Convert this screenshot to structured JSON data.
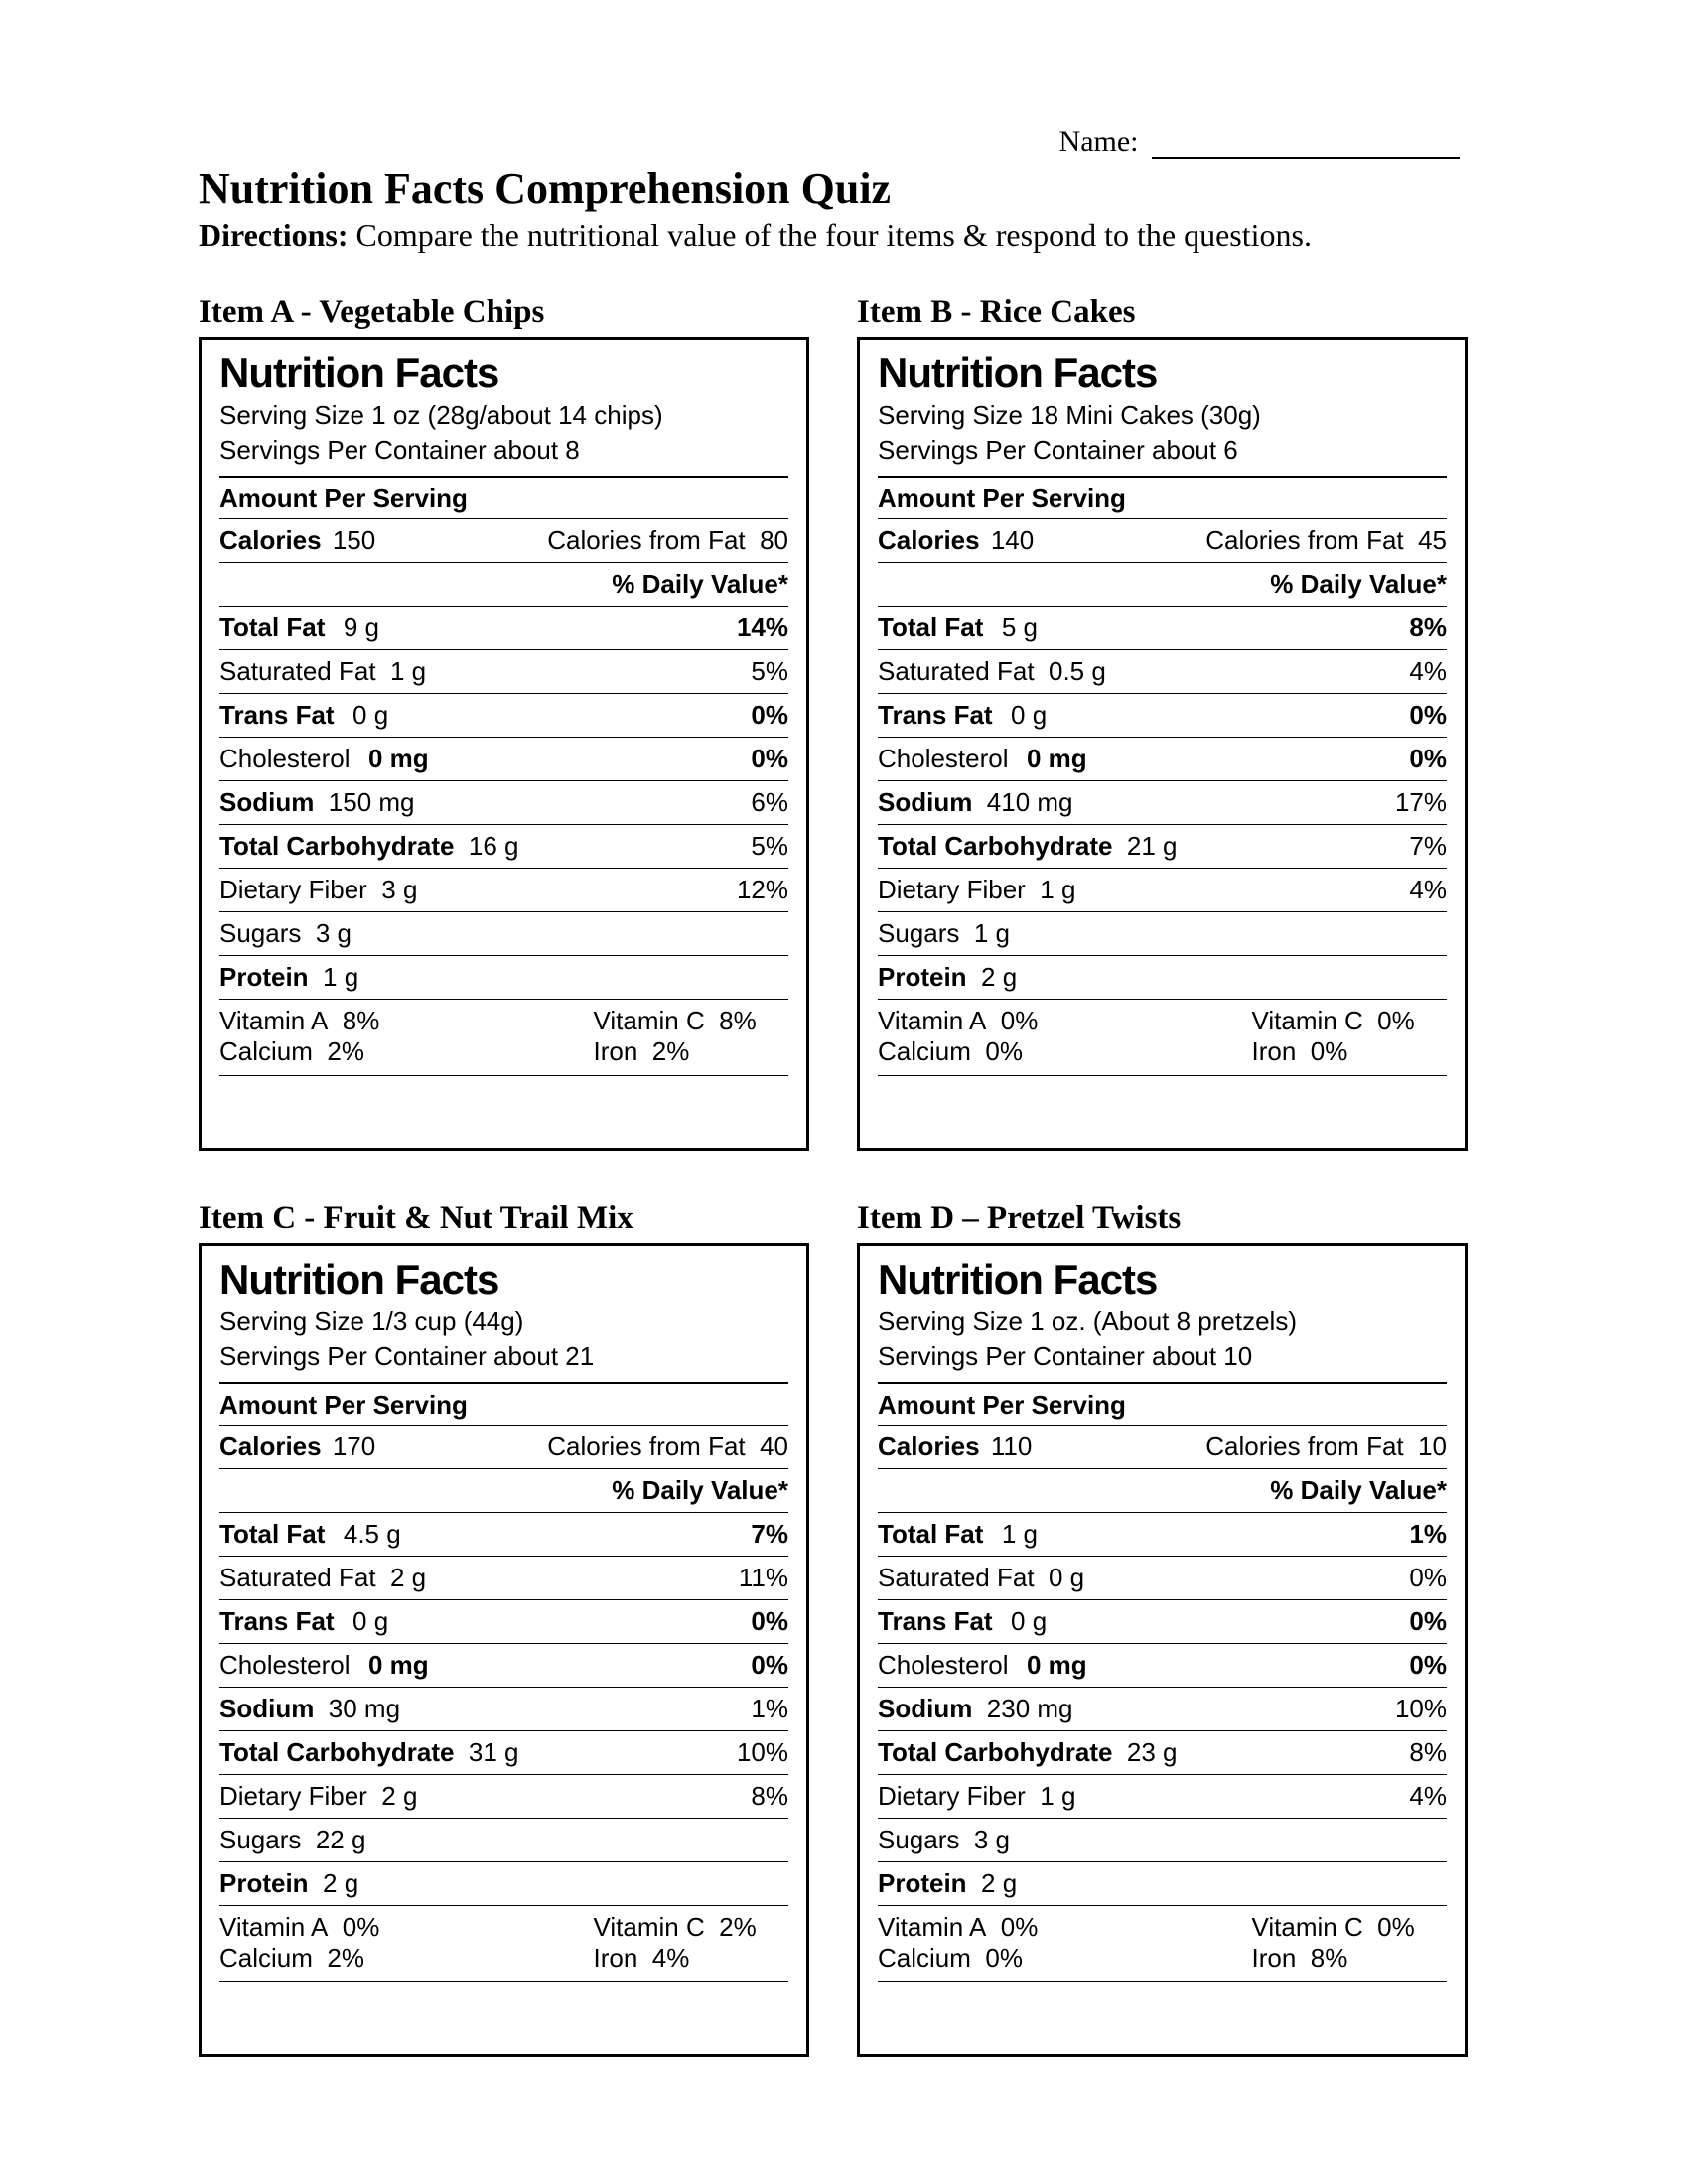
{
  "header": {
    "name_label": "Name:",
    "title": "Nutrition Facts Comprehension Quiz",
    "directions_label": "Directions:",
    "directions_text": "Compare the nutritional value of the four items & respond to the questions."
  },
  "labels": {
    "nf": "Nutrition Facts",
    "serving_size": "Serving Size",
    "servings_per": "Servings Per Container about",
    "aps": "Amount Per Serving",
    "calories": "Calories",
    "cff": "Calories from Fat",
    "dv": "% Daily Value*",
    "total_fat": "Total Fat",
    "sat_fat": "Saturated Fat",
    "trans_fat": "Trans Fat",
    "cholesterol": "Cholesterol",
    "sodium": "Sodium",
    "total_carb": "Total Carbohydrate",
    "fiber": "Dietary Fiber",
    "sugars": "Sugars",
    "protein": "Protein",
    "vit_a": "Vitamin A",
    "vit_c": "Vitamin C",
    "calcium": "Calcium",
    "iron": "Iron"
  },
  "items": [
    {
      "title": "Item A - Vegetable Chips",
      "serving_size": "1 oz (28g/about 14 chips)",
      "servings": "8",
      "calories": "150",
      "calories_fat": "80",
      "total_fat": "9 g",
      "total_fat_dv": "14%",
      "sat_fat": "1 g",
      "sat_fat_dv": "5%",
      "trans_fat": "0 g",
      "trans_fat_dv": "0%",
      "cholesterol": "0 mg",
      "cholesterol_dv": "0%",
      "sodium": "150 mg",
      "sodium_dv": "6%",
      "total_carb": "16 g",
      "total_carb_dv": "5%",
      "fiber": "3 g",
      "fiber_dv": "12%",
      "sugars": "3 g",
      "protein": "1 g",
      "vit_a": "8%",
      "vit_c": "8%",
      "calcium": "2%",
      "iron": "2%"
    },
    {
      "title": "Item B - Rice Cakes",
      "serving_size": "18 Mini Cakes (30g)",
      "servings": "6",
      "calories": "140",
      "calories_fat": "45",
      "total_fat": "5 g",
      "total_fat_dv": "8%",
      "sat_fat": "0.5 g",
      "sat_fat_dv": "4%",
      "trans_fat": "0 g",
      "trans_fat_dv": "0%",
      "cholesterol": "0 mg",
      "cholesterol_dv": "0%",
      "sodium": "410 mg",
      "sodium_dv": "17%",
      "total_carb": "21 g",
      "total_carb_dv": "7%",
      "fiber": "1 g",
      "fiber_dv": "4%",
      "sugars": "1 g",
      "protein": "2 g",
      "vit_a": "0%",
      "vit_c": "0%",
      "calcium": "0%",
      "iron": "0%"
    },
    {
      "title": "Item C - Fruit & Nut Trail Mix",
      "serving_size": "1/3 cup (44g)",
      "servings": "21",
      "calories": "170",
      "calories_fat": "40",
      "total_fat": "4.5 g",
      "total_fat_dv": "7%",
      "sat_fat": "2 g",
      "sat_fat_dv": "11%",
      "trans_fat": "0 g",
      "trans_fat_dv": "0%",
      "cholesterol": "0 mg",
      "cholesterol_dv": "0%",
      "sodium": "30 mg",
      "sodium_dv": "1%",
      "total_carb": "31 g",
      "total_carb_dv": "10%",
      "fiber": "2 g",
      "fiber_dv": "8%",
      "sugars": "22 g",
      "protein": "2 g",
      "vit_a": "0%",
      "vit_c": "2%",
      "calcium": "2%",
      "iron": "4%"
    },
    {
      "title": "Item D – Pretzel Twists",
      "serving_size": "1 oz. (About 8 pretzels)",
      "servings": "10",
      "calories": "110",
      "calories_fat": "10",
      "total_fat": "1 g",
      "total_fat_dv": "1%",
      "sat_fat": "0 g",
      "sat_fat_dv": "0%",
      "trans_fat": "0 g",
      "trans_fat_dv": "0%",
      "cholesterol": "0 mg",
      "cholesterol_dv": "0%",
      "sodium": "230 mg",
      "sodium_dv": "10%",
      "total_carb": "23 g",
      "total_carb_dv": "8%",
      "fiber": "1 g",
      "fiber_dv": "4%",
      "sugars": "3 g",
      "protein": "2 g",
      "vit_a": "0%",
      "vit_c": "0%",
      "calcium": "0%",
      "iron": "8%"
    }
  ]
}
